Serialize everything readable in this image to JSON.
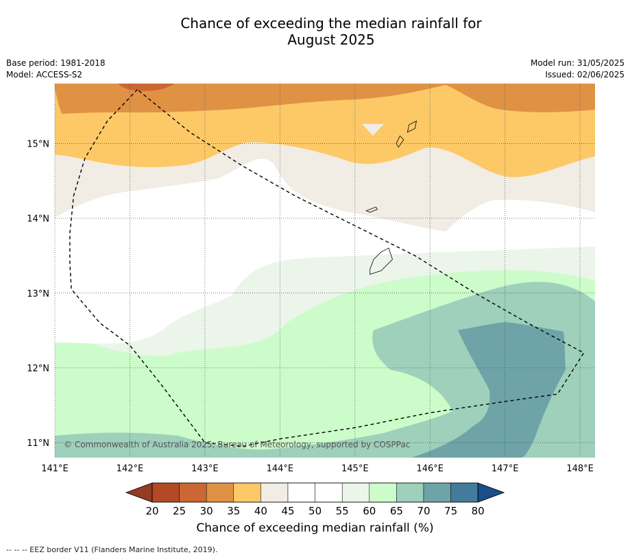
{
  "title_line1": "Chance of exceeding the median rainfall for",
  "title_line2": "August 2025",
  "left_meta": {
    "base_period": "Base period: 1981-2018",
    "model": "Model: ACCESS-S2"
  },
  "right_meta": {
    "model_run": "Model run: 31/05/2025",
    "issued": "Issued: 02/06/2025"
  },
  "map": {
    "lon_range": [
      141.0,
      148.2
    ],
    "lat_range": [
      10.8,
      15.8
    ],
    "lon_ticks": [
      141,
      142,
      143,
      144,
      145,
      146,
      147,
      148
    ],
    "lon_tick_labels": [
      "141°E",
      "142°E",
      "143°E",
      "144°E",
      "145°E",
      "146°E",
      "147°E",
      "148°E"
    ],
    "lat_ticks": [
      11,
      12,
      13,
      14,
      15
    ],
    "lat_tick_labels": [
      "11°N",
      "12°N",
      "13°N",
      "14°N",
      "15°N"
    ],
    "copyright": "© Commonwealth of Australia 2025, Bureau of Meteorology, supported by COSPPac",
    "eez_border": [
      [
        142.1,
        15.72
      ],
      [
        141.7,
        15.3
      ],
      [
        141.4,
        14.8
      ],
      [
        141.25,
        14.3
      ],
      [
        141.2,
        13.8
      ],
      [
        141.2,
        13.4
      ],
      [
        141.22,
        13.05
      ],
      [
        141.6,
        12.6
      ],
      [
        142.0,
        12.3
      ],
      [
        142.4,
        11.8
      ],
      [
        142.7,
        11.4
      ],
      [
        143.0,
        11.0
      ],
      [
        143.5,
        10.95
      ],
      [
        144.0,
        11.05
      ],
      [
        145.0,
        11.2
      ],
      [
        146.0,
        11.4
      ],
      [
        147.0,
        11.55
      ],
      [
        147.7,
        11.65
      ],
      [
        148.05,
        12.2
      ],
      [
        147.3,
        12.6
      ],
      [
        146.6,
        13.0
      ],
      [
        145.8,
        13.5
      ],
      [
        145.0,
        13.9
      ],
      [
        144.2,
        14.3
      ],
      [
        143.5,
        14.7
      ],
      [
        142.8,
        15.15
      ],
      [
        142.1,
        15.72
      ]
    ],
    "islands": [
      [
        [
          145.2,
          13.25
        ],
        [
          145.35,
          13.3
        ],
        [
          145.5,
          13.45
        ],
        [
          145.45,
          13.6
        ],
        [
          145.35,
          13.55
        ],
        [
          145.25,
          13.45
        ],
        [
          145.2,
          13.32
        ]
      ],
      [
        [
          145.15,
          14.1
        ],
        [
          145.28,
          14.15
        ],
        [
          145.3,
          14.12
        ],
        [
          145.2,
          14.08
        ]
      ],
      [
        [
          145.58,
          14.95
        ],
        [
          145.65,
          15.05
        ],
        [
          145.6,
          15.1
        ],
        [
          145.55,
          15.0
        ]
      ],
      [
        [
          145.7,
          15.15
        ],
        [
          145.8,
          15.2
        ],
        [
          145.82,
          15.3
        ],
        [
          145.72,
          15.25
        ]
      ]
    ]
  },
  "colorbar": {
    "labels": [
      "20",
      "25",
      "30",
      "35",
      "40",
      "45",
      "50",
      "55",
      "60",
      "65",
      "70",
      "75",
      "80"
    ],
    "colors": [
      "#b24a26",
      "#cc6633",
      "#e09244",
      "#fdc966",
      "#f1ece4",
      "#ffffff",
      "#ffffff",
      "#ebf5ea",
      "#ccfcca",
      "#9ed0bb",
      "#6ea4a7",
      "#427c9a"
    ],
    "under_color": "#943c24",
    "over_color": "#1a4d8a",
    "title": "Chance of exceeding median rainfall (%)"
  },
  "footnote": "--  --  -- EEZ border V11 (Flanders Marine Institute, 2019)."
}
